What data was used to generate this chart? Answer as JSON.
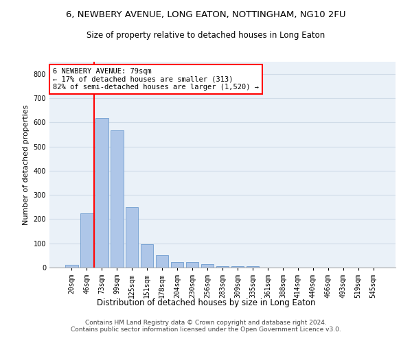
{
  "title": "6, NEWBERY AVENUE, LONG EATON, NOTTINGHAM, NG10 2FU",
  "subtitle": "Size of property relative to detached houses in Long Eaton",
  "xlabel": "Distribution of detached houses by size in Long Eaton",
  "ylabel": "Number of detached properties",
  "bar_labels": [
    "20sqm",
    "46sqm",
    "73sqm",
    "99sqm",
    "125sqm",
    "151sqm",
    "178sqm",
    "204sqm",
    "230sqm",
    "256sqm",
    "283sqm",
    "309sqm",
    "335sqm",
    "361sqm",
    "388sqm",
    "414sqm",
    "440sqm",
    "466sqm",
    "493sqm",
    "519sqm",
    "545sqm"
  ],
  "bar_values": [
    10,
    225,
    617,
    568,
    250,
    97,
    50,
    22,
    22,
    13,
    7,
    5,
    5,
    0,
    0,
    0,
    0,
    0,
    0,
    0,
    0
  ],
  "bar_color": "#aec6e8",
  "bar_edge_color": "#5b8fc9",
  "vline_x": 1.5,
  "annotation_text": "6 NEWBERY AVENUE: 79sqm\n← 17% of detached houses are smaller (313)\n82% of semi-detached houses are larger (1,520) →",
  "annotation_box_color": "white",
  "annotation_box_edgecolor": "red",
  "vline_color": "red",
  "ylim": [
    0,
    850
  ],
  "yticks": [
    0,
    100,
    200,
    300,
    400,
    500,
    600,
    700,
    800
  ],
  "grid_color": "#d0dce8",
  "background_color": "#eaf1f8",
  "footer_line1": "Contains HM Land Registry data © Crown copyright and database right 2024.",
  "footer_line2": "Contains public sector information licensed under the Open Government Licence v3.0.",
  "title_fontsize": 9.5,
  "subtitle_fontsize": 8.5,
  "xlabel_fontsize": 8.5,
  "ylabel_fontsize": 8,
  "tick_fontsize": 7,
  "annotation_fontsize": 7.5,
  "footer_fontsize": 6.5
}
